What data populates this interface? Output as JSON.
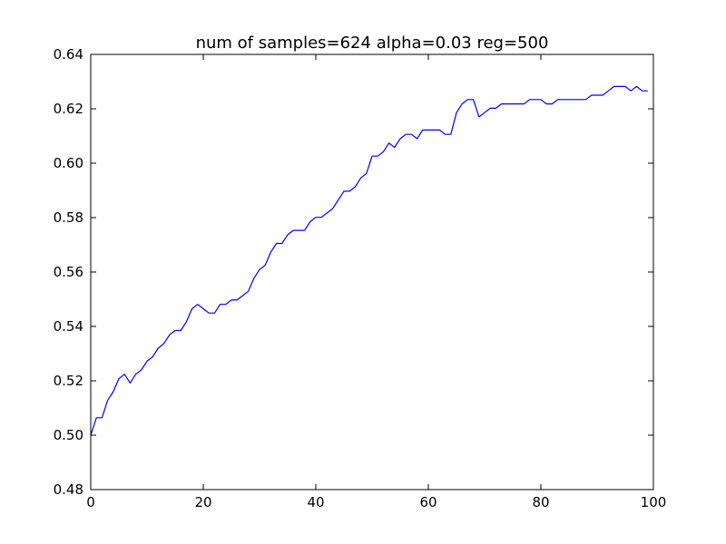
{
  "chart_data": {
    "type": "line",
    "title": "num of samples=624   alpha=0.03   reg=500",
    "xlabel": "",
    "ylabel": "",
    "xlim": [
      0,
      100
    ],
    "ylim": [
      0.48,
      0.64
    ],
    "xticks": [
      0,
      20,
      40,
      60,
      80,
      100
    ],
    "yticks": [
      0.48,
      0.5,
      0.52,
      0.54,
      0.56,
      0.58,
      0.6,
      0.62,
      0.64
    ],
    "xtick_labels": [
      "0",
      "20",
      "40",
      "60",
      "80",
      "100"
    ],
    "ytick_labels": [
      "0.48",
      "0.50",
      "0.52",
      "0.54",
      "0.56",
      "0.58",
      "0.60",
      "0.62",
      "0.64"
    ],
    "grid": false,
    "legend": "none",
    "series": [
      {
        "color": "#0000ff",
        "x": [
          0,
          1,
          2,
          3,
          4,
          5,
          6,
          7,
          8,
          9,
          10,
          11,
          12,
          13,
          14,
          15,
          16,
          17,
          18,
          19,
          20,
          21,
          22,
          23,
          24,
          25,
          26,
          27,
          28,
          29,
          30,
          31,
          32,
          33,
          34,
          35,
          36,
          37,
          38,
          39,
          40,
          41,
          42,
          43,
          44,
          45,
          46,
          47,
          48,
          49,
          50,
          51,
          52,
          53,
          54,
          55,
          56,
          57,
          58,
          59,
          60,
          61,
          62,
          63,
          64,
          65,
          66,
          67,
          68,
          69,
          70,
          71,
          72,
          73,
          74,
          75,
          76,
          77,
          78,
          79,
          80,
          81,
          82,
          83,
          84,
          85,
          86,
          87,
          88,
          89,
          90,
          91,
          92,
          93,
          94,
          95,
          96,
          97,
          98,
          99
        ],
        "y": [
          0.5,
          0.5064,
          0.5064,
          0.5128,
          0.516,
          0.5208,
          0.5224,
          0.5192,
          0.5224,
          0.524,
          0.5272,
          0.5288,
          0.532,
          0.5337,
          0.5369,
          0.5385,
          0.5385,
          0.5417,
          0.5465,
          0.5481,
          0.5465,
          0.5449,
          0.5449,
          0.5481,
          0.5481,
          0.5497,
          0.5497,
          0.5513,
          0.5529,
          0.5577,
          0.5609,
          0.5625,
          0.5673,
          0.5705,
          0.5705,
          0.5737,
          0.5753,
          0.5753,
          0.5753,
          0.5785,
          0.5801,
          0.5801,
          0.5817,
          0.5833,
          0.5865,
          0.5897,
          0.5897,
          0.5913,
          0.5946,
          0.5962,
          0.6026,
          0.6026,
          0.6042,
          0.6074,
          0.6058,
          0.609,
          0.6106,
          0.6106,
          0.609,
          0.6122,
          0.6122,
          0.6122,
          0.6122,
          0.6106,
          0.6106,
          0.6186,
          0.6218,
          0.6234,
          0.6234,
          0.617,
          0.6186,
          0.6202,
          0.6202,
          0.6218,
          0.6218,
          0.6218,
          0.6218,
          0.6218,
          0.6234,
          0.6234,
          0.6234,
          0.6218,
          0.6218,
          0.6234,
          0.6234,
          0.6234,
          0.6234,
          0.6234,
          0.6234,
          0.625,
          0.625,
          0.625,
          0.6266,
          0.6282,
          0.6282,
          0.6282,
          0.6266,
          0.6282,
          0.6266,
          0.6266
        ]
      }
    ]
  }
}
